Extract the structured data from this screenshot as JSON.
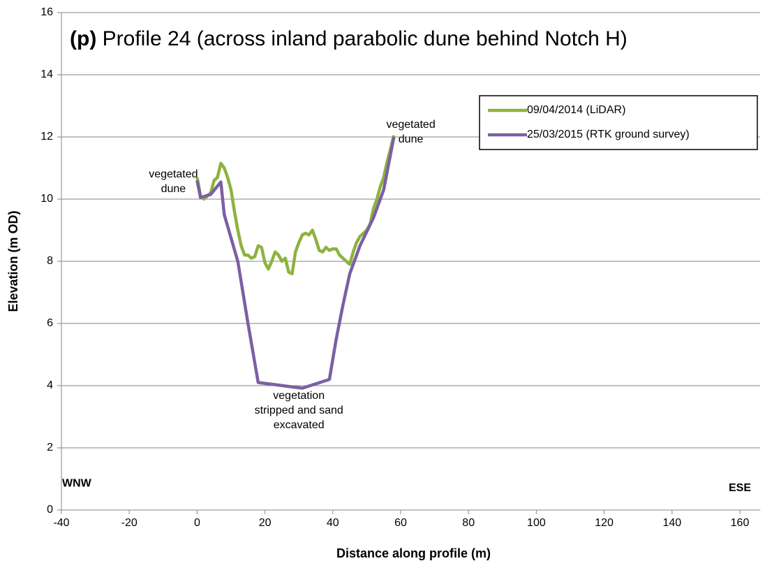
{
  "chart_data": {
    "type": "line",
    "title_label": "(p)",
    "title": "Profile 24 (across inland parabolic dune behind Notch H)",
    "x_label": "Distance along profile (m)",
    "y_label": "Elevation (m OD)",
    "xlim": [
      -40,
      166
    ],
    "ylim": [
      0,
      16
    ],
    "xticks": [
      -40,
      -20,
      0,
      20,
      40,
      60,
      80,
      100,
      120,
      140,
      160
    ],
    "yticks": [
      0,
      2,
      4,
      6,
      8,
      10,
      12,
      14,
      16
    ],
    "grid": true,
    "legend_position": "upper right",
    "series": [
      {
        "name": "09/04/2014 (LiDAR)",
        "color": "#8db33e",
        "x": [
          0,
          1,
          2,
          3,
          4,
          5,
          6,
          7,
          8,
          9,
          10,
          11,
          12,
          13,
          14,
          15,
          16,
          17,
          18,
          19,
          20,
          21,
          22,
          23,
          24,
          25,
          26,
          27,
          28,
          29,
          30,
          31,
          32,
          33,
          34,
          35,
          36,
          37,
          38,
          39,
          40,
          41,
          42,
          43,
          44,
          45,
          46,
          47,
          48,
          50,
          51,
          52,
          53,
          54,
          55,
          56,
          57,
          58
        ],
        "values": [
          10.7,
          10.1,
          10.0,
          10.1,
          10.2,
          10.6,
          10.7,
          11.15,
          11.0,
          10.7,
          10.3,
          9.6,
          9.0,
          8.5,
          8.2,
          8.2,
          8.1,
          8.15,
          8.5,
          8.45,
          7.95,
          7.75,
          8.0,
          8.3,
          8.2,
          8.0,
          8.1,
          7.65,
          7.6,
          8.3,
          8.6,
          8.85,
          8.9,
          8.85,
          9.0,
          8.7,
          8.35,
          8.3,
          8.45,
          8.35,
          8.4,
          8.4,
          8.2,
          8.1,
          8.0,
          7.9,
          8.3,
          8.6,
          8.8,
          9.0,
          9.2,
          9.7,
          10.0,
          10.4,
          10.7,
          11.2,
          11.6,
          12.05
        ]
      },
      {
        "name": "25/03/2015 (RTK ground survey)",
        "color": "#7c5fa3",
        "x": [
          0,
          1,
          4,
          7,
          8,
          12,
          15,
          18,
          31,
          39,
          41,
          43,
          45,
          48,
          52,
          55,
          58
        ],
        "values": [
          10.6,
          10.05,
          10.15,
          10.55,
          9.5,
          8.0,
          6.0,
          4.1,
          3.92,
          4.2,
          5.5,
          6.6,
          7.6,
          8.5,
          9.4,
          10.3,
          12.0
        ]
      }
    ],
    "annotations": [
      {
        "lines": [
          "vegetated",
          "dune"
        ],
        "x": -7,
        "y": 10.55
      },
      {
        "lines": [
          "vegetated",
          "dune"
        ],
        "x": 63,
        "y": 12.15
      },
      {
        "lines": [
          "vegetation",
          "stripped and sand",
          "excavated"
        ],
        "x": 30,
        "y": 3.2
      },
      {
        "lines": [
          "WNW"
        ],
        "x": -35.5,
        "y": 0.85
      },
      {
        "lines": [
          "ESE"
        ],
        "x": 160,
        "y": 0.7
      }
    ]
  }
}
